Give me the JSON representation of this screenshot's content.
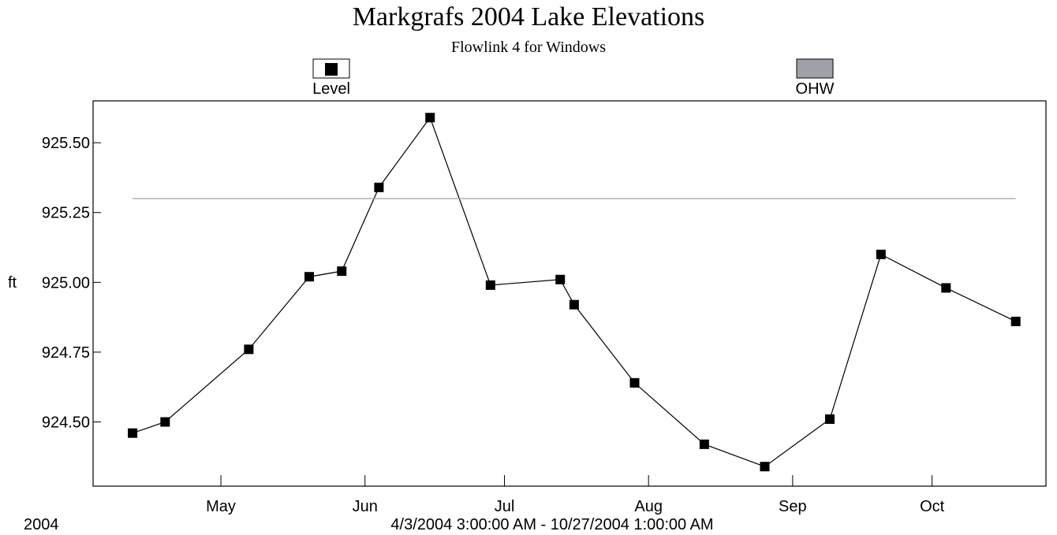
{
  "chart_data": {
    "type": "line",
    "title": "Markgrafs 2004 Lake Elevations",
    "subtitle": "Flowlink 4 for Windows",
    "ylabel": "ft",
    "year_label": "2004",
    "range_label": "4/3/2004 3:00:00 AM - 10/27/2004 1:00:00 AM",
    "xlim": [
      94.5,
      299.5
    ],
    "xticks": [
      {
        "value": 122,
        "label": "May"
      },
      {
        "value": 153,
        "label": "Jun"
      },
      {
        "value": 183,
        "label": "Jul"
      },
      {
        "value": 214,
        "label": "Aug"
      },
      {
        "value": 245,
        "label": "Sep"
      },
      {
        "value": 275,
        "label": "Oct"
      }
    ],
    "ylim": [
      924.27,
      925.65
    ],
    "yticks": [
      {
        "value": 924.5,
        "label": "924.50"
      },
      {
        "value": 924.75,
        "label": "924.75"
      },
      {
        "value": 925.0,
        "label": "925.00"
      },
      {
        "value": 925.25,
        "label": "925.25"
      },
      {
        "value": 925.5,
        "label": "925.50"
      }
    ],
    "series": [
      {
        "name": "Level",
        "color": "#000000",
        "markers": true,
        "x": [
          103,
          110,
          128,
          141,
          148,
          156,
          167,
          180,
          195,
          198,
          211,
          226,
          239,
          253,
          264,
          278,
          293
        ],
        "values": [
          924.46,
          924.5,
          924.76,
          925.02,
          925.04,
          925.34,
          925.59,
          924.99,
          925.01,
          924.92,
          924.64,
          924.42,
          924.34,
          924.51,
          925.1,
          924.98,
          924.86
        ]
      },
      {
        "name": "OHW",
        "color": "#a0a0a8",
        "markers": false,
        "x": [
          103,
          293
        ],
        "values": [
          925.3,
          925.3
        ]
      }
    ]
  }
}
